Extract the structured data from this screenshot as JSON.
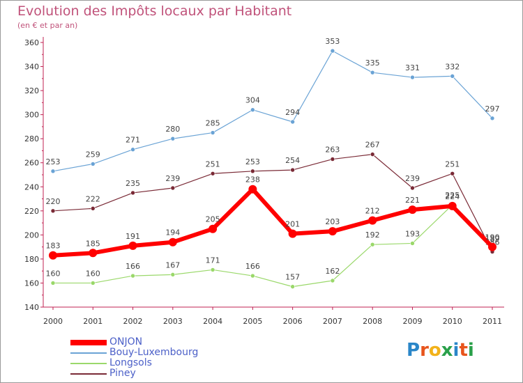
{
  "title": "Evolution des Impôts locaux par Habitant",
  "subtitle": "(en € et par an)",
  "logo": {
    "letters": [
      "P",
      "r",
      "o",
      "x",
      "i",
      "t",
      "i"
    ],
    "colors": [
      "#2a86c8",
      "#e8541c",
      "#f2b21a",
      "#2aa04a",
      "#2a86c8",
      "#e8541c",
      "#2aa04a"
    ]
  },
  "chart_data": {
    "type": "line",
    "title": "Evolution des Impôts locaux par Habitant",
    "subtitle": "(en € et par an)",
    "x": [
      "2000",
      "2001",
      "2002",
      "2003",
      "2004",
      "2005",
      "2006",
      "2007",
      "2008",
      "2009",
      "2010",
      "2011"
    ],
    "ylim": [
      140,
      360
    ],
    "yticks": [
      140,
      160,
      180,
      200,
      220,
      240,
      260,
      280,
      300,
      320,
      340,
      360
    ],
    "grid": false,
    "legend_position": "bottom-left",
    "series": [
      {
        "name": "Bouy-Luxembourg",
        "color": "#6aa3d5",
        "width": 1.2,
        "values": [
          253,
          259,
          271,
          280,
          285,
          304,
          294,
          353,
          335,
          331,
          332,
          297
        ],
        "labels": [
          "253",
          "259",
          "271",
          "280",
          "285",
          "304",
          "294",
          "353",
          "335",
          "331",
          "332",
          "297"
        ]
      },
      {
        "name": "Piney",
        "color": "#7a2a36",
        "width": 1.2,
        "values": [
          220,
          222,
          235,
          239,
          251,
          253,
          254,
          263,
          267,
          239,
          251,
          186
        ],
        "labels": [
          "220",
          "222",
          "235",
          "239",
          "251",
          "253",
          "254",
          "263",
          "267",
          "239",
          "251",
          "186"
        ]
      },
      {
        "name": "Longsols",
        "color": "#9ad86a",
        "width": 1.2,
        "values": [
          160,
          160,
          166,
          167,
          171,
          166,
          157,
          162,
          192,
          193,
          225,
          189
        ],
        "labels": [
          "160",
          "160",
          "166",
          "167",
          "171",
          "166",
          "157",
          "162",
          "192",
          "193",
          "225",
          "189"
        ]
      },
      {
        "name": "ONJON",
        "color": "#ff0000",
        "width": 6,
        "values": [
          183,
          185,
          191,
          194,
          205,
          238,
          201,
          203,
          212,
          221,
          224,
          190
        ],
        "labels": [
          "183",
          "185",
          "191",
          "194",
          "205",
          "238",
          "201",
          "203",
          "212",
          "221",
          "224",
          "190"
        ]
      }
    ],
    "legend_order": [
      "ONJON",
      "Bouy-Luxembourg",
      "Longsols",
      "Piney"
    ]
  }
}
